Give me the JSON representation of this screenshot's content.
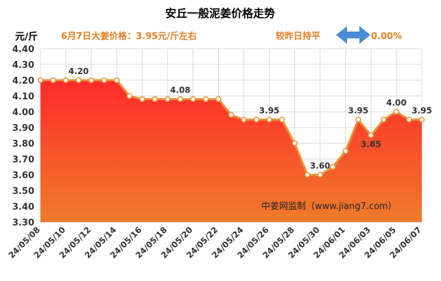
{
  "header": {
    "title": "安丘一般泥姜价格走势",
    "unit": "元/斤",
    "price_text": "6月7日大姜价格：3.95元/斤左右",
    "compare_label": "较昨日持平",
    "compare_value": "0.00%"
  },
  "watermark": "中姜网监制（www.jiang7.com）",
  "colors": {
    "line": "#e8943a",
    "area_top": "#ff2a2a",
    "area_bottom": "#ef7c2a",
    "arrow": "#4a8fd6",
    "accent_text": "#e67e22"
  },
  "chart_data": {
    "type": "area",
    "title": "安丘一般泥姜价格走势",
    "ylabel": "元/斤",
    "ylim": [
      3.3,
      4.4
    ],
    "y_ticks": [
      "3.30",
      "3.40",
      "3.50",
      "3.60",
      "3.70",
      "3.80",
      "3.90",
      "4.00",
      "4.10",
      "4.20",
      "4.30",
      "4.40"
    ],
    "x_tick_labels": [
      "24/05/08",
      "24/05/10",
      "24/05/12",
      "24/05/14",
      "24/05/16",
      "24/05/18",
      "24/05/20",
      "24/05/22",
      "24/05/24",
      "24/05/26",
      "24/05/28",
      "24/05/30",
      "24/06/01",
      "24/06/03",
      "24/06/05",
      "24/06/07"
    ],
    "grid": true,
    "series": [
      {
        "x": [
          "24/05/08",
          "24/05/09",
          "24/05/10",
          "24/05/11",
          "24/05/12",
          "24/05/13",
          "24/05/14",
          "24/05/15",
          "24/05/16",
          "24/05/17",
          "24/05/18",
          "24/05/19",
          "24/05/20",
          "24/05/21",
          "24/05/22",
          "24/05/23",
          "24/05/24",
          "24/05/25",
          "24/05/26",
          "24/05/27",
          "24/05/28",
          "24/05/29",
          "24/05/30",
          "24/05/31",
          "24/06/01",
          "24/06/02",
          "24/06/03",
          "24/06/04",
          "24/06/05",
          "24/06/06",
          "24/06/07"
        ],
        "values": [
          4.2,
          4.2,
          4.2,
          4.2,
          4.2,
          4.2,
          4.2,
          4.1,
          4.08,
          4.08,
          4.08,
          4.08,
          4.08,
          4.08,
          4.08,
          3.98,
          3.95,
          3.95,
          3.95,
          3.95,
          3.8,
          3.6,
          3.6,
          3.65,
          3.75,
          3.95,
          3.85,
          3.95,
          4.0,
          3.95,
          3.95
        ]
      }
    ],
    "data_labels": [
      {
        "x": "24/05/11",
        "text": "4.20"
      },
      {
        "x": "24/05/19",
        "text": "4.08"
      },
      {
        "x": "24/05/26",
        "text": "3.95"
      },
      {
        "x": "24/05/30",
        "text": "3.60"
      },
      {
        "x": "24/06/02",
        "text": "3.95"
      },
      {
        "x": "24/06/03",
        "text": "3.85"
      },
      {
        "x": "24/06/05",
        "text": "4.00"
      },
      {
        "x": "24/06/07",
        "text": "3.95"
      }
    ]
  }
}
